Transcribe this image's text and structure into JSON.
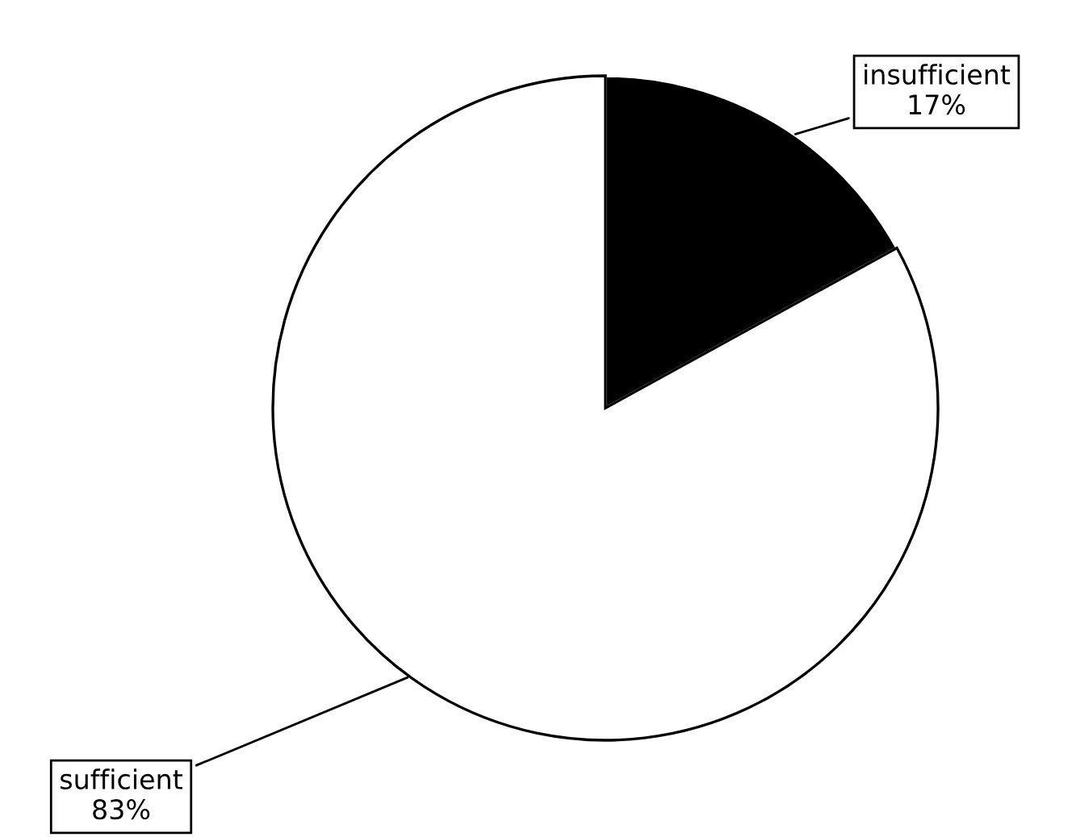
{
  "chart_data": {
    "type": "pie",
    "categories": [
      "insufficient",
      "sufficient"
    ],
    "values": [
      17,
      83
    ],
    "value_labels": [
      "17%",
      "83%"
    ],
    "colors": [
      "#000000",
      "#ffffff"
    ],
    "legend": false
  }
}
